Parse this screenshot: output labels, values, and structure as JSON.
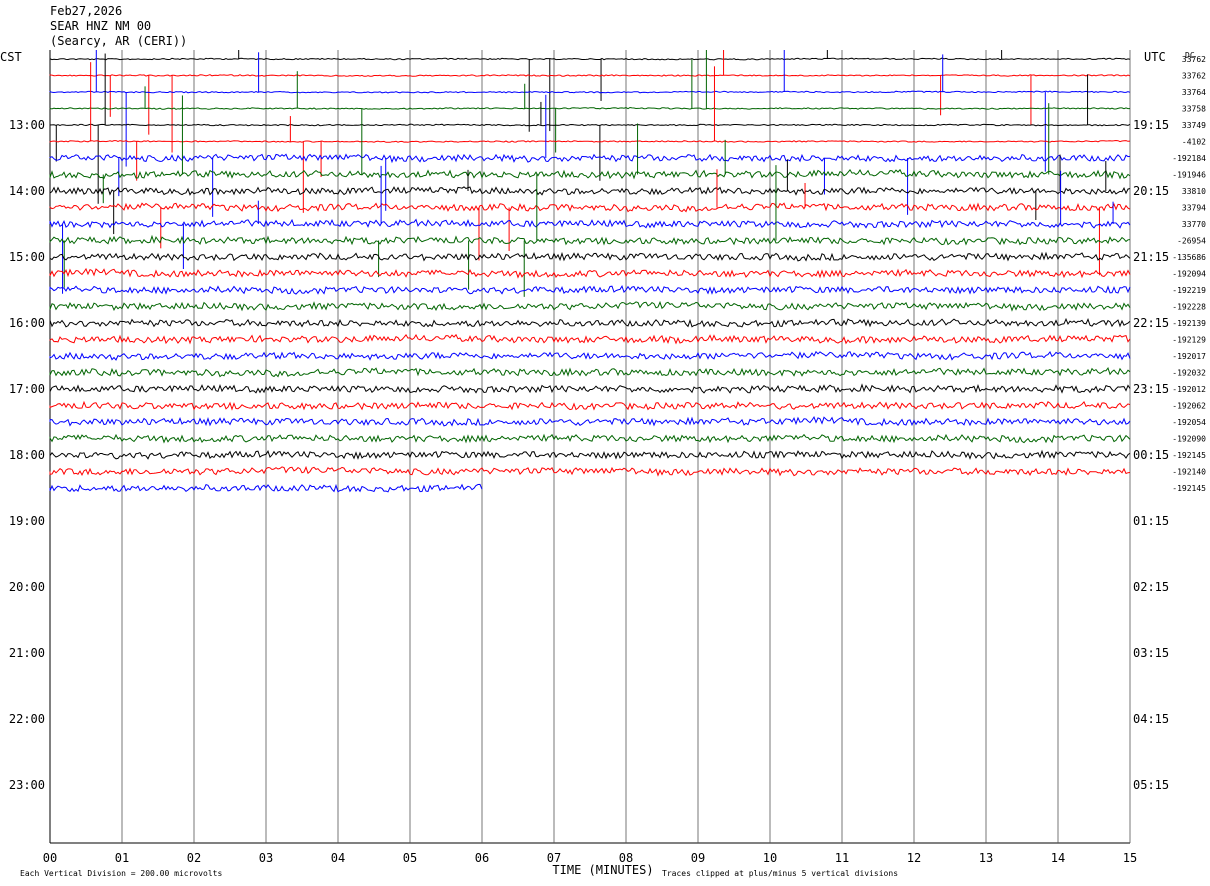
{
  "header": {
    "date": "Feb27,2026",
    "station": "SEAR HNZ NM 00",
    "location": "(Searcy, AR (CERI))"
  },
  "chart_data": {
    "type": "line",
    "title": "",
    "xlabel": "TIME (MINUTES)",
    "x_ticks": [
      "00",
      "01",
      "02",
      "03",
      "04",
      "05",
      "06",
      "07",
      "08",
      "09",
      "10",
      "11",
      "12",
      "13",
      "14",
      "15"
    ],
    "xlim": [
      0,
      15
    ],
    "left_axis_label": "CST",
    "right_axis_label": "UTC",
    "dc_label": "DC",
    "left_hour_labels": [
      "13:00",
      "14:00",
      "15:00",
      "16:00",
      "17:00",
      "18:00",
      "19:00",
      "20:00",
      "21:00",
      "22:00",
      "23:00"
    ],
    "right_hour_labels": [
      "19:15",
      "20:15",
      "21:15",
      "22:15",
      "23:15",
      "00:15",
      "01:15",
      "02:15",
      "03:15",
      "04:15",
      "05:15"
    ],
    "dc_offsets": [
      "33762",
      "33762",
      "33764",
      "33758",
      "33749",
      "-4102",
      "-192184",
      "-191946",
      "33810",
      "33794",
      "33770",
      "-26954",
      "-135686",
      "-192094",
      "-192219",
      "-192228",
      "-192139",
      "-192129",
      "-192017",
      "-192032",
      "-192012",
      "-192062",
      "-192054",
      "-192090",
      "-192145",
      "-192140",
      "-192145"
    ],
    "trace_colors": [
      "#000000",
      "#ff0000",
      "#0000ff",
      "#006400"
    ],
    "trace_count": 27,
    "last_trace_end_minute": 6.0,
    "footer_left": "Each Vertical Division =  200.00 microvolts",
    "footer_right": "Traces clipped at plus/minus 5 vertical divisions",
    "grid": true
  }
}
